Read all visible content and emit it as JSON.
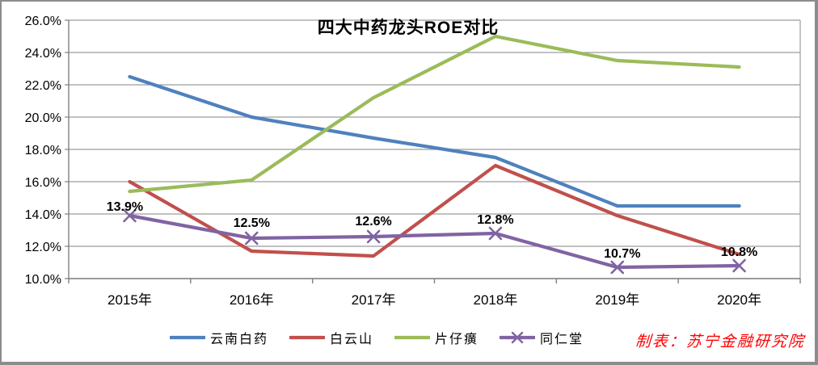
{
  "chart_data": {
    "type": "line",
    "title": "四大中药龙头ROE对比",
    "x_categories": [
      "2015年",
      "2016年",
      "2017年",
      "2018年",
      "2019年",
      "2020年"
    ],
    "y_tick_labels": [
      "26.0%",
      "24.0%",
      "22.0%",
      "20.0%",
      "18.0%",
      "16.0%",
      "14.0%",
      "12.0%",
      "10.0%"
    ],
    "ylim": [
      10,
      26
    ],
    "y_tick_step": 2,
    "y_unit": "percent",
    "grid": true,
    "legend_position": "bottom",
    "series": [
      {
        "name": "云南白药",
        "color": "#4F81BD",
        "marker": "none",
        "values": [
          22.5,
          20.0,
          18.7,
          17.5,
          14.5,
          14.5
        ]
      },
      {
        "name": "白云山",
        "color": "#C0504D",
        "marker": "none",
        "values": [
          16.0,
          11.7,
          11.4,
          17.0,
          13.9,
          11.5
        ]
      },
      {
        "name": "片仔癀",
        "color": "#9BBB59",
        "marker": "none",
        "values": [
          15.4,
          16.1,
          21.2,
          25.0,
          23.5,
          23.1
        ]
      },
      {
        "name": "同仁堂",
        "color": "#8064A2",
        "marker": "x",
        "values": [
          13.9,
          12.5,
          12.6,
          12.8,
          10.7,
          10.8
        ],
        "data_labels": [
          "13.9%",
          "12.5%",
          "12.6%",
          "12.8%",
          "10.7%",
          "10.8%"
        ]
      }
    ]
  },
  "credit": {
    "text": "制表：苏宁金融研究院",
    "color": "#FF0000"
  }
}
